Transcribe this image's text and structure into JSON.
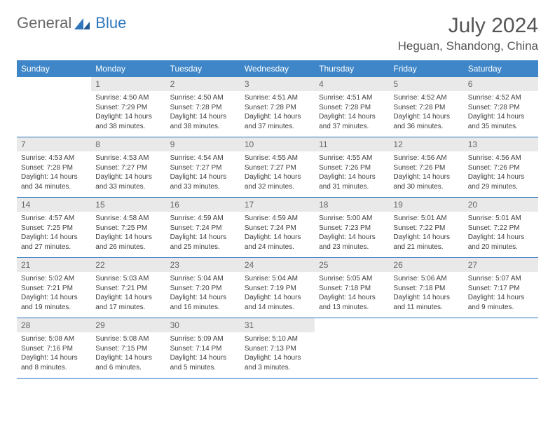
{
  "logo": {
    "text1": "General",
    "text2": "Blue"
  },
  "title": "July 2024",
  "location": "Heguan, Shandong, China",
  "colors": {
    "header_bg": "#3e86c8",
    "header_text": "#ffffff",
    "daynum_bg": "#e9e9e9",
    "row_border": "#2f76bc",
    "body_text": "#404040",
    "logo_accent": "#2f76bc"
  },
  "weekdays": [
    "Sunday",
    "Monday",
    "Tuesday",
    "Wednesday",
    "Thursday",
    "Friday",
    "Saturday"
  ],
  "start_offset": 1,
  "days": [
    {
      "n": 1,
      "sunrise": "4:50 AM",
      "sunset": "7:29 PM",
      "daylight": "14 hours and 38 minutes."
    },
    {
      "n": 2,
      "sunrise": "4:50 AM",
      "sunset": "7:28 PM",
      "daylight": "14 hours and 38 minutes."
    },
    {
      "n": 3,
      "sunrise": "4:51 AM",
      "sunset": "7:28 PM",
      "daylight": "14 hours and 37 minutes."
    },
    {
      "n": 4,
      "sunrise": "4:51 AM",
      "sunset": "7:28 PM",
      "daylight": "14 hours and 37 minutes."
    },
    {
      "n": 5,
      "sunrise": "4:52 AM",
      "sunset": "7:28 PM",
      "daylight": "14 hours and 36 minutes."
    },
    {
      "n": 6,
      "sunrise": "4:52 AM",
      "sunset": "7:28 PM",
      "daylight": "14 hours and 35 minutes."
    },
    {
      "n": 7,
      "sunrise": "4:53 AM",
      "sunset": "7:28 PM",
      "daylight": "14 hours and 34 minutes."
    },
    {
      "n": 8,
      "sunrise": "4:53 AM",
      "sunset": "7:27 PM",
      "daylight": "14 hours and 33 minutes."
    },
    {
      "n": 9,
      "sunrise": "4:54 AM",
      "sunset": "7:27 PM",
      "daylight": "14 hours and 33 minutes."
    },
    {
      "n": 10,
      "sunrise": "4:55 AM",
      "sunset": "7:27 PM",
      "daylight": "14 hours and 32 minutes."
    },
    {
      "n": 11,
      "sunrise": "4:55 AM",
      "sunset": "7:26 PM",
      "daylight": "14 hours and 31 minutes."
    },
    {
      "n": 12,
      "sunrise": "4:56 AM",
      "sunset": "7:26 PM",
      "daylight": "14 hours and 30 minutes."
    },
    {
      "n": 13,
      "sunrise": "4:56 AM",
      "sunset": "7:26 PM",
      "daylight": "14 hours and 29 minutes."
    },
    {
      "n": 14,
      "sunrise": "4:57 AM",
      "sunset": "7:25 PM",
      "daylight": "14 hours and 27 minutes."
    },
    {
      "n": 15,
      "sunrise": "4:58 AM",
      "sunset": "7:25 PM",
      "daylight": "14 hours and 26 minutes."
    },
    {
      "n": 16,
      "sunrise": "4:59 AM",
      "sunset": "7:24 PM",
      "daylight": "14 hours and 25 minutes."
    },
    {
      "n": 17,
      "sunrise": "4:59 AM",
      "sunset": "7:24 PM",
      "daylight": "14 hours and 24 minutes."
    },
    {
      "n": 18,
      "sunrise": "5:00 AM",
      "sunset": "7:23 PM",
      "daylight": "14 hours and 23 minutes."
    },
    {
      "n": 19,
      "sunrise": "5:01 AM",
      "sunset": "7:22 PM",
      "daylight": "14 hours and 21 minutes."
    },
    {
      "n": 20,
      "sunrise": "5:01 AM",
      "sunset": "7:22 PM",
      "daylight": "14 hours and 20 minutes."
    },
    {
      "n": 21,
      "sunrise": "5:02 AM",
      "sunset": "7:21 PM",
      "daylight": "14 hours and 19 minutes."
    },
    {
      "n": 22,
      "sunrise": "5:03 AM",
      "sunset": "7:21 PM",
      "daylight": "14 hours and 17 minutes."
    },
    {
      "n": 23,
      "sunrise": "5:04 AM",
      "sunset": "7:20 PM",
      "daylight": "14 hours and 16 minutes."
    },
    {
      "n": 24,
      "sunrise": "5:04 AM",
      "sunset": "7:19 PM",
      "daylight": "14 hours and 14 minutes."
    },
    {
      "n": 25,
      "sunrise": "5:05 AM",
      "sunset": "7:18 PM",
      "daylight": "14 hours and 13 minutes."
    },
    {
      "n": 26,
      "sunrise": "5:06 AM",
      "sunset": "7:18 PM",
      "daylight": "14 hours and 11 minutes."
    },
    {
      "n": 27,
      "sunrise": "5:07 AM",
      "sunset": "7:17 PM",
      "daylight": "14 hours and 9 minutes."
    },
    {
      "n": 28,
      "sunrise": "5:08 AM",
      "sunset": "7:16 PM",
      "daylight": "14 hours and 8 minutes."
    },
    {
      "n": 29,
      "sunrise": "5:08 AM",
      "sunset": "7:15 PM",
      "daylight": "14 hours and 6 minutes."
    },
    {
      "n": 30,
      "sunrise": "5:09 AM",
      "sunset": "7:14 PM",
      "daylight": "14 hours and 5 minutes."
    },
    {
      "n": 31,
      "sunrise": "5:10 AM",
      "sunset": "7:13 PM",
      "daylight": "14 hours and 3 minutes."
    }
  ],
  "labels": {
    "sunrise": "Sunrise:",
    "sunset": "Sunset:",
    "daylight": "Daylight:"
  }
}
